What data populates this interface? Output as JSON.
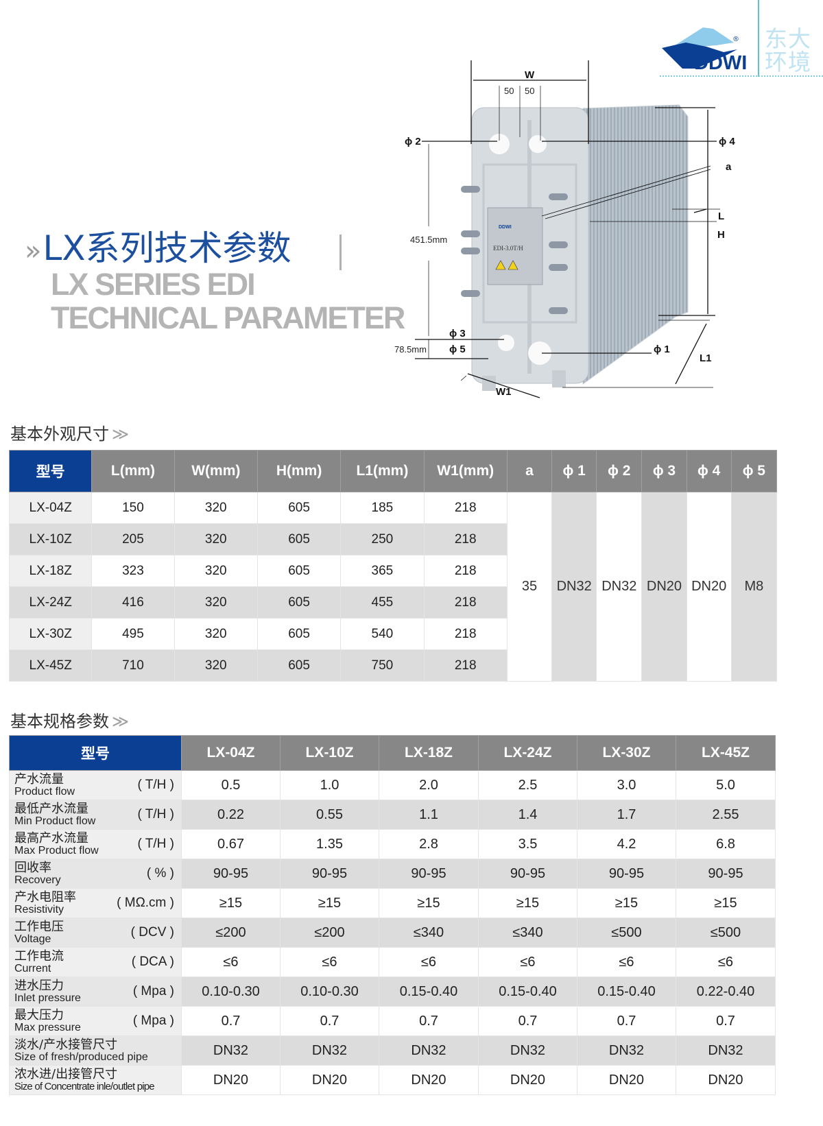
{
  "brand": {
    "logo_text": "DDWI",
    "registered_mark": "®",
    "cn_line1": "东大",
    "cn_line2": "环境",
    "colors": {
      "dark_blue": "#0b3f94",
      "light_blue": "#8fcbea",
      "teal": "#5cc3d3"
    }
  },
  "title": {
    "marker": "»",
    "cn": "LX系列技术参数",
    "en_line1": "LX SERIES EDI",
    "en_line2": "TECHNICAL PARAMETER"
  },
  "diagram": {
    "label_w": "W",
    "label_50_left": "50",
    "label_50_right": "50",
    "label_phi2": "ϕ 2",
    "label_phi4": "ϕ 4",
    "label_a": "a",
    "label_l": "L",
    "label_h": "H",
    "label_height_dim": "451.5mm",
    "label_phi3": "ϕ 3",
    "label_phi5": "ϕ 5",
    "label_bottom_dim": "78.5mm",
    "label_phi1": "ϕ 1",
    "label_l1": "L1",
    "label_w1": "W1",
    "device_box_text": "EDI-3.0T/H",
    "device_box_logo": "DDWI"
  },
  "dimensions": {
    "heading": "基本外观尺寸",
    "heading_icon": "double-chevron-right",
    "headers": [
      "型号",
      "L(mm)",
      "W(mm)",
      "H(mm)",
      "L1(mm)",
      "W1(mm)",
      "a",
      "ϕ 1",
      "ϕ 2",
      "ϕ 3",
      "ϕ 4",
      "ϕ 5"
    ],
    "rows": [
      [
        "LX-04Z",
        "150",
        "320",
        "605",
        "185",
        "218"
      ],
      [
        "LX-10Z",
        "205",
        "320",
        "605",
        "250",
        "218"
      ],
      [
        "LX-18Z",
        "323",
        "320",
        "605",
        "365",
        "218"
      ],
      [
        "LX-24Z",
        "416",
        "320",
        "605",
        "455",
        "218"
      ],
      [
        "LX-30Z",
        "495",
        "320",
        "605",
        "540",
        "218"
      ],
      [
        "LX-45Z",
        "710",
        "320",
        "605",
        "750",
        "218"
      ]
    ],
    "shared": [
      "35",
      "DN32",
      "DN32",
      "DN20",
      "DN20",
      "M8"
    ]
  },
  "specs": {
    "heading": "基本规格参数",
    "heading_icon": "double-chevron-right",
    "model_header": "型号",
    "models": [
      "LX-04Z",
      "LX-10Z",
      "LX-18Z",
      "LX-24Z",
      "LX-30Z",
      "LX-45Z"
    ],
    "rows": [
      {
        "cn": "产水流量",
        "en": "Product flow",
        "unit": "( T/H )",
        "values": [
          "0.5",
          "1.0",
          "2.0",
          "2.5",
          "3.0",
          "5.0"
        ]
      },
      {
        "cn": "最低产水流量",
        "en": "Min Product flow",
        "unit": "( T/H )",
        "values": [
          "0.22",
          "0.55",
          "1.1",
          "1.4",
          "1.7",
          "2.55"
        ]
      },
      {
        "cn": "最高产水流量",
        "en": "Max Product flow",
        "unit": "( T/H )",
        "values": [
          "0.67",
          "1.35",
          "2.8",
          "3.5",
          "4.2",
          "6.8"
        ]
      },
      {
        "cn": "回收率",
        "en": "Recovery",
        "unit": "( % )",
        "values": [
          "90-95",
          "90-95",
          "90-95",
          "90-95",
          "90-95",
          "90-95"
        ]
      },
      {
        "cn": "产水电阻率",
        "en": "Resistivity",
        "unit": "( MΩ.cm )",
        "values": [
          "≥15",
          "≥15",
          "≥15",
          "≥15",
          "≥15",
          "≥15"
        ]
      },
      {
        "cn": "工作电压",
        "en": "Voltage",
        "unit": "( DCV )",
        "values": [
          "≤200",
          "≤200",
          "≤340",
          "≤340",
          "≤500",
          "≤500"
        ]
      },
      {
        "cn": "工作电流",
        "en": "Current",
        "unit": "( DCA )",
        "values": [
          "≤6",
          "≤6",
          "≤6",
          "≤6",
          "≤6",
          "≤6"
        ]
      },
      {
        "cn": "进水压力",
        "en": "Inlet pressure",
        "unit": "( Mpa )",
        "values": [
          "0.10-0.30",
          "0.10-0.30",
          "0.15-0.40",
          "0.15-0.40",
          "0.15-0.40",
          "0.22-0.40"
        ]
      },
      {
        "cn": "最大压力",
        "en": "Max pressure",
        "unit": "( Mpa )",
        "values": [
          "0.7",
          "0.7",
          "0.7",
          "0.7",
          "0.7",
          "0.7"
        ]
      },
      {
        "cn": "淡水/产水接管尺寸",
        "en": "Size of fresh/produced pipe",
        "unit": "",
        "values": [
          "DN32",
          "DN32",
          "DN32",
          "DN32",
          "DN32",
          "DN32"
        ]
      },
      {
        "cn": "浓水进/出接管尺寸",
        "en": "Size of Concentrate inle/outlet pipe",
        "unit": "",
        "values": [
          "DN20",
          "DN20",
          "DN20",
          "DN20",
          "DN20",
          "DN20"
        ]
      }
    ]
  }
}
